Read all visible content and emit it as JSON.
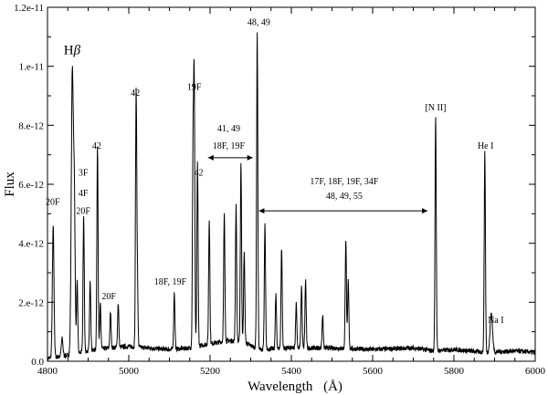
{
  "chart_data": {
    "type": "line",
    "title": "",
    "xlabel": "Wavelength",
    "xlabel_unit": "(Å)",
    "ylabel": "Flux",
    "xlim": [
      4800,
      6000
    ],
    "ylim": [
      0,
      1.2e-11
    ],
    "grid": false,
    "x_ticks": [
      {
        "value": 4800,
        "label": "4800"
      },
      {
        "value": 5000,
        "label": "5000"
      },
      {
        "value": 5200,
        "label": "5200"
      },
      {
        "value": 5400,
        "label": "5400"
      },
      {
        "value": 5600,
        "label": "5600"
      },
      {
        "value": 5800,
        "label": "5800"
      },
      {
        "value": 6000,
        "label": "6000"
      }
    ],
    "y_ticks": [
      {
        "value": 0,
        "label": "0.0"
      },
      {
        "value": 2e-12,
        "label": "2.e-12"
      },
      {
        "value": 4e-12,
        "label": "4.e-12"
      },
      {
        "value": 6e-12,
        "label": "6.e-12"
      },
      {
        "value": 8e-12,
        "label": "8.e-12"
      },
      {
        "value": 1e-11,
        "label": "1.e-11"
      },
      {
        "value": 1.2e-11,
        "label": "1.2e-11"
      }
    ],
    "continuum": [
      [
        4800,
        1e-13
      ],
      [
        4850,
        2e-13
      ],
      [
        4900,
        3.5e-13
      ],
      [
        4950,
        4.5e-13
      ],
      [
        5000,
        5e-13
      ],
      [
        5050,
        4.5e-13
      ],
      [
        5100,
        4e-13
      ],
      [
        5150,
        4.5e-13
      ],
      [
        5200,
        6e-13
      ],
      [
        5250,
        7e-13
      ],
      [
        5290,
        6e-13
      ],
      [
        5320,
        4e-13
      ],
      [
        5400,
        4.5e-13
      ],
      [
        5500,
        4.5e-13
      ],
      [
        5600,
        4e-13
      ],
      [
        5700,
        4.5e-13
      ],
      [
        5750,
        3.5e-13
      ],
      [
        5800,
        4e-13
      ],
      [
        5880,
        3e-13
      ],
      [
        5950,
        3.5e-13
      ],
      [
        6000,
        3e-13
      ]
    ],
    "emission_lines": [
      {
        "wavelength": 4814,
        "peak": 4.4e-12,
        "width": 2
      },
      {
        "wavelength": 4836,
        "peak": 6e-13,
        "width": 2
      },
      {
        "wavelength": 4861,
        "peak": 9.5e-12,
        "width": 2.5
      },
      {
        "wavelength": 4866,
        "peak": 5e-12,
        "width": 2
      },
      {
        "wavelength": 4873,
        "peak": 2.4e-12,
        "width": 1.5
      },
      {
        "wavelength": 4889,
        "peak": 4.6e-12,
        "width": 1.5
      },
      {
        "wavelength": 4905,
        "peak": 2.4e-12,
        "width": 1.5
      },
      {
        "wavelength": 4923,
        "peak": 6.8e-12,
        "width": 1.5
      },
      {
        "wavelength": 4930,
        "peak": 1.5e-12,
        "width": 1.5
      },
      {
        "wavelength": 4955,
        "peak": 1.2e-12,
        "width": 1.5
      },
      {
        "wavelength": 4974,
        "peak": 1.5e-12,
        "width": 1.5
      },
      {
        "wavelength": 5018,
        "peak": 8.4e-12,
        "width": 1.5
      },
      {
        "wavelength": 5021,
        "peak": 2.3e-12,
        "width": 1.5
      },
      {
        "wavelength": 5112,
        "peak": 1.9e-12,
        "width": 1.5
      },
      {
        "wavelength": 5158,
        "peak": 6.2e-12,
        "width": 1.5
      },
      {
        "wavelength": 5169,
        "peak": 6.2e-12,
        "width": 1.5
      },
      {
        "wavelength": 5161,
        "peak": 8.7e-12,
        "width": 1.5
      },
      {
        "wavelength": 5198,
        "peak": 4.2e-12,
        "width": 1.5
      },
      {
        "wavelength": 5235,
        "peak": 4.3e-12,
        "width": 1.5
      },
      {
        "wavelength": 5264,
        "peak": 4.6e-12,
        "width": 1.5
      },
      {
        "wavelength": 5276,
        "peak": 6.1e-12,
        "width": 1.5
      },
      {
        "wavelength": 5284,
        "peak": 3.1e-12,
        "width": 1.5
      },
      {
        "wavelength": 5316,
        "peak": 1.07e-11,
        "width": 1.5
      },
      {
        "wavelength": 5335,
        "peak": 4.2e-12,
        "width": 1.5
      },
      {
        "wavelength": 5362,
        "peak": 1.8e-12,
        "width": 1.5
      },
      {
        "wavelength": 5376,
        "peak": 3.4e-12,
        "width": 1.5
      },
      {
        "wavelength": 5412,
        "peak": 1.5e-12,
        "width": 1.5
      },
      {
        "wavelength": 5425,
        "peak": 2.1e-12,
        "width": 1.5
      },
      {
        "wavelength": 5435,
        "peak": 2.3e-12,
        "width": 1.5
      },
      {
        "wavelength": 5477,
        "peak": 1.1e-12,
        "width": 1.5
      },
      {
        "wavelength": 5534,
        "peak": 3.7e-12,
        "width": 1.5
      },
      {
        "wavelength": 5540,
        "peak": 2.3e-12,
        "width": 1.5
      },
      {
        "wavelength": 5755,
        "peak": 8e-12,
        "width": 1.5
      },
      {
        "wavelength": 5876,
        "peak": 6.8e-12,
        "width": 1.5
      },
      {
        "wavelength": 5892,
        "peak": 1.3e-12,
        "width": 3
      }
    ],
    "annotations": [
      {
        "text": "20F",
        "x": 4813,
        "y": 5.3e-12
      },
      {
        "text": "3F",
        "x": 4888,
        "y": 6.3e-12
      },
      {
        "text": "4F",
        "x": 4888,
        "y": 5.6e-12
      },
      {
        "text": "20F",
        "x": 4888,
        "y": 5e-12
      },
      {
        "text": "42",
        "x": 4921,
        "y": 7.2e-12
      },
      {
        "text": "20F",
        "x": 4951,
        "y": 2.1e-12
      },
      {
        "text": "42",
        "x": 5016,
        "y": 9e-12
      },
      {
        "text": "18F, 19F",
        "x": 5102,
        "y": 2.6e-12
      },
      {
        "text": "19F",
        "x": 5161,
        "y": 9.2e-12
      },
      {
        "text": "42",
        "x": 5172,
        "y": 6.3e-12
      },
      {
        "text": "41, 49",
        "x": 5246,
        "y": 7.8e-12
      },
      {
        "text": "18F, 19F",
        "x": 5246,
        "y": 7.2e-12
      },
      {
        "text": "48, 49",
        "x": 5320,
        "y": 1.14e-11
      },
      {
        "text": "17F, 18F, 19F, 34F",
        "x": 5530,
        "y": 6e-12
      },
      {
        "text": "48, 49, 55",
        "x": 5530,
        "y": 5.5e-12
      },
      {
        "text": "[N II]",
        "x": 5755,
        "y": 8.5e-12
      },
      {
        "text": "He I",
        "x": 5878,
        "y": 7.2e-12
      },
      {
        "text": "Na I",
        "x": 5903,
        "y": 1.3e-12
      }
    ],
    "range_arrows": [
      {
        "from": 5195,
        "to": 5305,
        "y": 6.9e-12
      },
      {
        "from": 5320,
        "to": 5735,
        "y": 5.1e-12
      }
    ],
    "hbeta_label": {
      "symbol": "H",
      "subscript": "β",
      "x": 4840,
      "y": 1.04e-11
    }
  }
}
